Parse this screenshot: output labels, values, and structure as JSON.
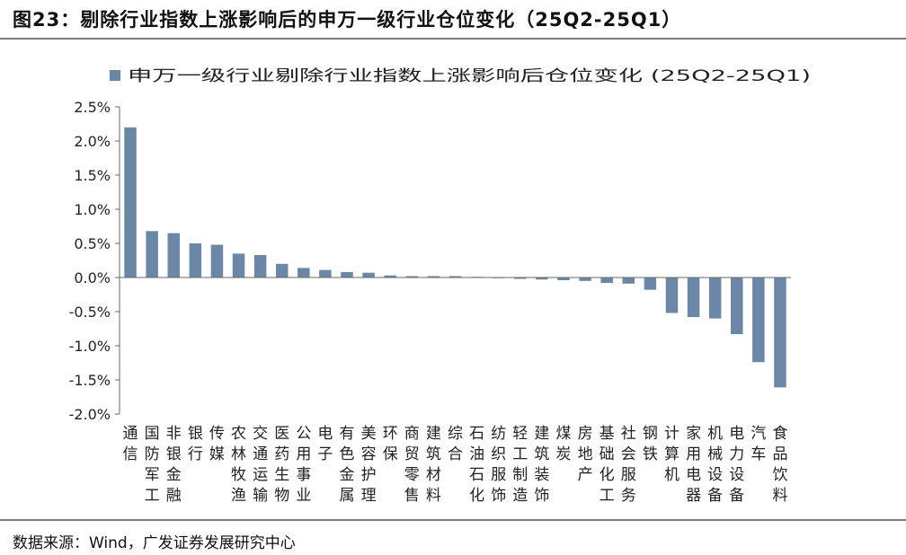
{
  "figure": {
    "title": "图23：剔除行业指数上涨影响后的申万一级行业仓位变化（25Q2-25Q1）",
    "source": "数据来源：Wind，广发证券发展研究中心"
  },
  "colors": {
    "bar": "#6b87a6",
    "axis": "#6a6a6a"
  },
  "chart_data": {
    "type": "bar",
    "title": "",
    "xlabel": "",
    "ylabel": "",
    "legend": {
      "position": "top",
      "entries": [
        "申万一级行业剔除行业指数上涨影响后仓位变化 (25Q2-25Q1)"
      ]
    },
    "grid": false,
    "ylim": [
      -0.02,
      0.025
    ],
    "yticks": [
      0.025,
      0.02,
      0.015,
      0.01,
      0.005,
      0.0,
      -0.005,
      -0.01,
      -0.015,
      -0.02
    ],
    "ytick_labels": [
      "2.5%",
      "2.0%",
      "1.5%",
      "1.0%",
      "0.5%",
      "0.0%",
      "-0.5%",
      "-1.0%",
      "-1.5%",
      "-2.0%"
    ],
    "categories": [
      "通信",
      "国防军工",
      "非银金融",
      "银行",
      "传媒",
      "农林牧渔",
      "交通运输",
      "医药生物",
      "公用事业",
      "电子",
      "有色金属",
      "美容护理",
      "环保",
      "商贸零售",
      "建筑材料",
      "综合",
      "石油石化",
      "纺织服饰",
      "轻工制造",
      "建筑装饰",
      "煤炭",
      "房地产",
      "基础化工",
      "社会服务",
      "钢铁",
      "计算机",
      "家用电器",
      "机械设备",
      "电力设备",
      "汽车",
      "食品饮料"
    ],
    "series": [
      {
        "name": "申万一级行业剔除行业指数上涨影响后仓位变化 (25Q2-25Q1)",
        "values": [
          0.022,
          0.0068,
          0.0065,
          0.005,
          0.0048,
          0.0035,
          0.0033,
          0.002,
          0.0014,
          0.0011,
          0.0008,
          0.0007,
          0.0003,
          0.0002,
          0.0002,
          0.0002,
          0.0001,
          -0.0001,
          -0.0002,
          -0.0003,
          -0.0004,
          -0.0005,
          -0.0008,
          -0.0009,
          -0.0018,
          -0.0052,
          -0.0058,
          -0.006,
          -0.0083,
          -0.0124,
          -0.0161
        ]
      }
    ]
  }
}
